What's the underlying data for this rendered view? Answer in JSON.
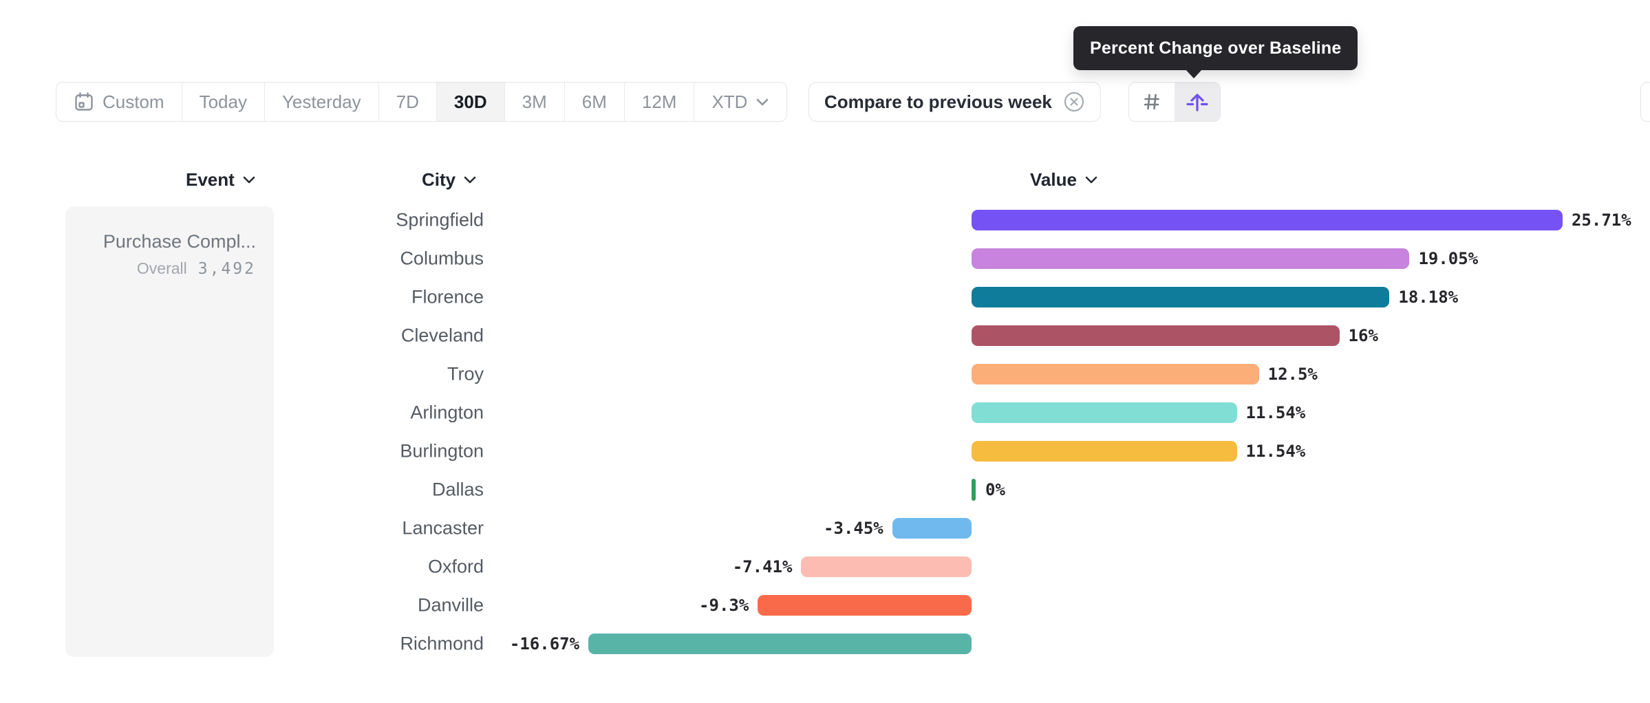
{
  "tooltip": {
    "text": "Percent Change over Baseline"
  },
  "toolbar": {
    "items": [
      {
        "label": "Custom"
      },
      {
        "label": "Today"
      },
      {
        "label": "Yesterday"
      },
      {
        "label": "7D"
      },
      {
        "label": "30D",
        "selected": true
      },
      {
        "label": "3M"
      },
      {
        "label": "6M"
      },
      {
        "label": "12M"
      },
      {
        "label": "XTD"
      }
    ]
  },
  "compare_chip": {
    "label": "Compare to previous week"
  },
  "view_toggle": {
    "options": [
      {
        "name": "numbers",
        "icon": "number-sign-icon"
      },
      {
        "name": "percent-change-over-baseline",
        "icon": "baseline-arrow-icon",
        "selected": true,
        "accent": "#7050F0"
      }
    ]
  },
  "columns": {
    "event": "Event",
    "city": "City",
    "value": "Value"
  },
  "event_panel": {
    "title": "Purchase Compl...",
    "overall_label": "Overall",
    "overall_value": "3,492"
  },
  "chart_data": {
    "type": "bar",
    "orientation": "horizontal",
    "title": "Percent Change over Baseline",
    "unit": "%",
    "grid": false,
    "xlim": [
      -18,
      29
    ],
    "value_label_position": "outside-end",
    "categories": [
      "Springfield",
      "Columbus",
      "Florence",
      "Cleveland",
      "Troy",
      "Arlington",
      "Burlington",
      "Dallas",
      "Lancaster",
      "Oxford",
      "Danville",
      "Richmond"
    ],
    "values": [
      25.71,
      19.05,
      18.18,
      16,
      12.5,
      11.54,
      11.54,
      0,
      -3.45,
      -7.41,
      -9.3,
      -16.67
    ],
    "value_labels": [
      "25.71%",
      "19.05%",
      "18.18%",
      "16%",
      "12.5%",
      "11.54%",
      "11.54%",
      "0%",
      "-3.45%",
      "-7.41%",
      "-9.3%",
      "-16.67%"
    ],
    "colors": [
      "#7452F3",
      "#C783DE",
      "#107C9B",
      "#AD5366",
      "#FCAE78",
      "#80DED4",
      "#F5BC3F",
      "#2E9F5B",
      "#6FB9EE",
      "#FCBCB2",
      "#F96A4A",
      "#59B4A8"
    ]
  }
}
